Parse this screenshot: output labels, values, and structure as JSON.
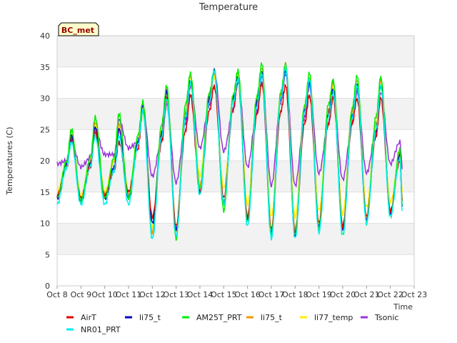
{
  "chart_data": {
    "type": "line",
    "title": "Temperature",
    "xlabel": "Time",
    "ylabel": "Temperatures (C)",
    "site_label": "BC_met",
    "ylim": [
      0,
      40
    ],
    "yticks": [
      0,
      5,
      10,
      15,
      20,
      25,
      30,
      35,
      40
    ],
    "xlim": [
      8,
      23
    ],
    "xticks": [
      {
        "value": 8,
        "label": "Oct 8"
      },
      {
        "value": 9,
        "label": "Oct 9"
      },
      {
        "value": 10,
        "label": "Oct 10"
      },
      {
        "value": 11,
        "label": "Oct 11"
      },
      {
        "value": 12,
        "label": "Oct 12"
      },
      {
        "value": 13,
        "label": "Oct 13"
      },
      {
        "value": 14,
        "label": "Oct 14"
      },
      {
        "value": 15,
        "label": "Oct 15"
      },
      {
        "value": 16,
        "label": "Oct 16"
      },
      {
        "value": 17,
        "label": "Oct 17"
      },
      {
        "value": 18,
        "label": "Oct 18"
      },
      {
        "value": 19,
        "label": "Oct 19"
      },
      {
        "value": 20,
        "label": "Oct 20"
      },
      {
        "value": 21,
        "label": "Oct 21"
      },
      {
        "value": 22,
        "label": "Oct 22"
      },
      {
        "value": 23,
        "label": "Oct 23"
      }
    ],
    "grid": "horizontal bands",
    "legend_position": "bottom",
    "series": [
      {
        "name": "AirT",
        "color": "#dd0000",
        "x": [
          8.0,
          8.4,
          8.6,
          9.0,
          9.4,
          9.6,
          10.0,
          10.4,
          10.6,
          11.0,
          11.4,
          11.6,
          12.0,
          12.4,
          12.6,
          13.0,
          13.4,
          13.6,
          14.0,
          14.4,
          14.6,
          15.0,
          15.4,
          15.6,
          16.0,
          16.4,
          16.6,
          17.0,
          17.4,
          17.6,
          18.0,
          18.4,
          18.6,
          19.0,
          19.4,
          19.6,
          20.0,
          20.4,
          20.6,
          21.0,
          21.4,
          21.6,
          22.0,
          22.4,
          22.5
        ],
        "y": [
          14.5,
          19.0,
          23.5,
          14.0,
          19.0,
          24.5,
          14.5,
          18.5,
          23.0,
          15.0,
          22.0,
          28.0,
          11.0,
          23.0,
          30.0,
          9.5,
          25.0,
          30.5,
          15.0,
          28.0,
          32.0,
          14.0,
          28.5,
          32.5,
          11.0,
          27.5,
          32.5,
          9.0,
          28.0,
          32.0,
          8.5,
          26.0,
          30.5,
          10.0,
          26.0,
          30.0,
          9.5,
          26.0,
          30.0,
          11.0,
          24.0,
          30.0,
          12.0,
          20.0,
          13.5
        ]
      },
      {
        "name": "li75_t",
        "color": "#0000cc",
        "x": [
          8.0,
          8.4,
          8.6,
          9.0,
          9.4,
          9.6,
          10.0,
          10.4,
          10.6,
          11.0,
          11.4,
          11.6,
          12.0,
          12.4,
          12.6,
          13.0,
          13.4,
          13.6,
          14.0,
          14.4,
          14.6,
          15.0,
          15.4,
          15.6,
          16.0,
          16.4,
          16.6,
          17.0,
          17.4,
          17.6,
          18.0,
          18.4,
          18.6,
          19.0,
          19.4,
          19.6,
          20.0,
          20.4,
          20.6,
          21.0,
          21.4,
          21.6,
          22.0,
          22.4,
          22.5
        ],
        "y": [
          14.0,
          19.5,
          24.0,
          13.5,
          19.5,
          25.5,
          14.0,
          19.0,
          25.0,
          14.0,
          23.0,
          29.0,
          10.0,
          24.5,
          31.0,
          9.0,
          27.0,
          33.0,
          15.0,
          30.0,
          34.5,
          13.0,
          30.0,
          33.5,
          10.5,
          29.5,
          34.0,
          8.5,
          30.0,
          34.5,
          8.0,
          28.0,
          32.5,
          9.5,
          27.5,
          31.5,
          9.0,
          27.0,
          32.0,
          10.5,
          25.0,
          32.0,
          11.5,
          21.0,
          13.0
        ]
      },
      {
        "name": "AM25T_PRT",
        "color": "#00ee00",
        "x": [
          8.0,
          8.4,
          8.6,
          9.0,
          9.4,
          9.6,
          10.0,
          10.4,
          10.6,
          11.0,
          11.4,
          11.6,
          12.0,
          12.4,
          12.6,
          13.0,
          13.4,
          13.6,
          14.0,
          14.4,
          14.6,
          15.0,
          15.4,
          15.6,
          16.0,
          16.4,
          16.6,
          17.0,
          17.4,
          17.6,
          18.0,
          18.4,
          18.6,
          19.0,
          19.4,
          19.6,
          20.0,
          20.4,
          20.6,
          21.0,
          21.4,
          21.6,
          22.0,
          22.4,
          22.5
        ],
        "y": [
          14.0,
          20.0,
          25.0,
          13.5,
          20.5,
          27.0,
          14.0,
          20.5,
          27.5,
          14.0,
          24.0,
          29.5,
          7.5,
          26.0,
          32.0,
          7.5,
          29.0,
          34.0,
          15.5,
          31.0,
          34.5,
          12.0,
          30.5,
          34.5,
          10.0,
          30.5,
          35.5,
          8.0,
          31.0,
          35.5,
          8.0,
          29.0,
          34.0,
          9.0,
          29.0,
          33.0,
          8.0,
          28.5,
          33.5,
          10.0,
          27.0,
          33.5,
          11.0,
          22.0,
          13.0
        ]
      },
      {
        "name": "li75_t",
        "color": "#ee9900",
        "x": [
          8.0,
          8.4,
          8.6,
          9.0,
          9.4,
          9.6,
          10.0,
          10.4,
          10.6,
          11.0,
          11.4,
          11.6,
          12.0,
          12.4,
          12.6,
          13.0,
          13.4,
          13.6,
          14.0,
          14.4,
          14.6,
          15.0,
          15.4,
          15.6,
          16.0,
          16.4,
          16.6,
          17.0,
          17.4,
          17.6,
          18.0,
          18.4,
          18.6,
          19.0,
          19.4,
          19.6,
          20.0,
          20.4,
          20.6,
          21.0,
          21.4,
          21.6,
          22.0,
          22.4,
          22.5
        ],
        "y": [
          14.5,
          19.5,
          24.5,
          14.0,
          20.0,
          26.0,
          14.5,
          20.0,
          26.0,
          14.5,
          23.5,
          29.0,
          8.5,
          25.0,
          31.5,
          8.5,
          28.0,
          33.5,
          16.0,
          30.5,
          34.0,
          13.5,
          30.0,
          34.0,
          11.0,
          30.0,
          35.0,
          9.0,
          30.5,
          35.5,
          9.0,
          28.5,
          33.5,
          10.0,
          28.0,
          32.5,
          9.5,
          28.0,
          33.0,
          11.0,
          26.0,
          33.0,
          12.0,
          21.5,
          14.0
        ]
      },
      {
        "name": "li77_temp",
        "color": "#ffee00",
        "x": [
          8.0,
          8.4,
          8.6,
          9.0,
          9.4,
          9.6,
          10.0,
          10.4,
          10.6,
          11.0,
          11.4,
          11.6,
          12.0,
          12.4,
          12.6,
          13.0,
          13.4,
          13.6,
          14.0,
          14.4,
          14.6,
          15.0,
          15.4,
          15.6,
          16.0,
          16.4,
          16.6,
          17.0,
          17.4,
          17.6,
          18.0,
          18.4,
          18.6,
          19.0,
          19.4,
          19.6,
          20.0,
          20.4,
          20.6,
          21.0,
          21.4,
          21.6,
          22.0,
          22.4,
          22.5
        ],
        "y": [
          15.0,
          19.5,
          24.0,
          14.5,
          20.0,
          25.5,
          15.0,
          20.0,
          25.0,
          15.0,
          23.5,
          28.5,
          9.5,
          25.0,
          31.0,
          9.5,
          27.5,
          33.0,
          17.5,
          30.0,
          33.5,
          15.5,
          29.5,
          33.5,
          13.0,
          29.5,
          34.0,
          11.0,
          30.0,
          34.5,
          11.0,
          28.0,
          32.5,
          12.0,
          27.5,
          31.5,
          11.5,
          27.0,
          32.0,
          12.5,
          25.5,
          32.0,
          13.5,
          21.0,
          15.0
        ]
      },
      {
        "name": "Tsonic",
        "color": "#9933dd",
        "x": [
          8.0,
          8.4,
          8.6,
          9.0,
          9.4,
          9.6,
          10.0,
          10.4,
          10.6,
          11.0,
          11.4,
          11.6,
          12.0,
          12.4,
          12.6,
          13.0,
          13.4,
          13.6,
          14.0,
          14.4,
          14.6,
          15.0,
          15.4,
          15.6,
          16.0,
          16.4,
          16.6,
          17.0,
          17.4,
          17.6,
          18.0,
          18.4,
          18.6,
          19.0,
          19.4,
          19.6,
          20.0,
          20.4,
          20.6,
          21.0,
          21.4,
          21.6,
          22.0,
          22.4,
          22.5
        ],
        "y": [
          19.5,
          20.0,
          23.0,
          19.0,
          20.5,
          25.0,
          21.0,
          21.0,
          26.5,
          22.0,
          23.0,
          28.5,
          17.5,
          23.5,
          29.0,
          16.5,
          26.0,
          32.0,
          22.0,
          29.0,
          34.5,
          21.5,
          28.0,
          33.0,
          19.0,
          28.0,
          33.5,
          16.0,
          29.5,
          34.0,
          16.0,
          27.0,
          32.0,
          18.0,
          26.0,
          30.5,
          17.0,
          26.0,
          31.0,
          18.0,
          24.5,
          31.0,
          19.5,
          23.0,
          19.0
        ]
      },
      {
        "name": "NR01_PRT",
        "color": "#00eeee",
        "x": [
          8.0,
          8.4,
          8.6,
          9.0,
          9.4,
          9.6,
          10.0,
          10.4,
          10.6,
          11.0,
          11.4,
          11.6,
          12.0,
          12.4,
          12.6,
          13.0,
          13.4,
          13.6,
          14.0,
          14.4,
          14.6,
          15.0,
          15.4,
          15.6,
          16.0,
          16.4,
          16.6,
          17.0,
          17.4,
          17.6,
          18.0,
          18.4,
          18.6,
          19.0,
          19.4,
          19.6,
          20.0,
          20.4,
          20.6,
          21.0,
          21.4,
          21.6,
          22.0,
          22.4,
          22.5
        ],
        "y": [
          13.0,
          19.0,
          23.0,
          13.0,
          19.0,
          24.0,
          13.0,
          18.5,
          24.0,
          13.0,
          22.5,
          28.0,
          7.5,
          24.0,
          30.0,
          8.0,
          27.0,
          32.5,
          14.5,
          29.5,
          34.5,
          13.0,
          29.5,
          33.0,
          9.5,
          29.0,
          34.0,
          7.5,
          30.0,
          35.0,
          7.5,
          28.0,
          33.0,
          8.5,
          27.0,
          31.0,
          8.0,
          27.0,
          32.0,
          10.0,
          25.0,
          32.0,
          11.0,
          20.5,
          12.0
        ]
      }
    ]
  }
}
